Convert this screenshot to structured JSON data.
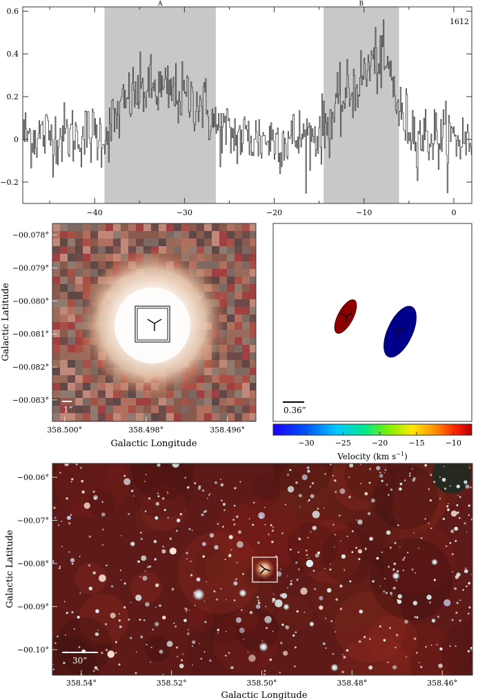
{
  "chart_data": [
    {
      "type": "line",
      "step": true,
      "id": "spectrum",
      "title": "",
      "xlabel": "",
      "ylabel": "",
      "xlim": [
        -48,
        2
      ],
      "ylim": [
        -0.3,
        0.62
      ],
      "corner_label": "1612",
      "x_ticks": [
        -40,
        -30,
        -20,
        -10,
        0
      ],
      "x_tick_labels": [
        "−40",
        "−30",
        "−20",
        "−10",
        "0"
      ],
      "y_ticks": [
        -0.2,
        0,
        0.2,
        0.4,
        0.6
      ],
      "y_tick_labels": [
        "−0.2",
        "0",
        "0.2",
        "0.4",
        "0.6"
      ],
      "shaded_regions": [
        {
          "label": "A",
          "x_start": -38.9,
          "x_end": -26.5
        },
        {
          "label": "B",
          "x_start": -14.5,
          "x_end": -6.1
        }
      ],
      "envelope": {
        "x": [
          -48,
          -38.9,
          -36,
          -34,
          -31,
          -28,
          -26.5,
          -24,
          -20,
          -16,
          -14.5,
          -12,
          -10,
          -9,
          -8,
          -7,
          -6.1,
          -4,
          0,
          2
        ],
        "y": [
          0.02,
          0.02,
          0.2,
          0.24,
          0.21,
          0.17,
          0.05,
          0.01,
          0.0,
          0.01,
          0.05,
          0.2,
          0.3,
          0.37,
          0.36,
          0.3,
          0.12,
          0.02,
          0.0,
          0.0
        ]
      },
      "noise_sigma": 0.075,
      "series": [
        {
          "color": "#4a4a4a"
        }
      ]
    },
    {
      "type": "image",
      "id": "zoom_image",
      "xlabel": "Galactic Longitude",
      "ylabel": "Galactic Latitude",
      "xlim": [
        358.5003,
        358.4953
      ],
      "ylim": [
        -0.08365,
        -0.07765
      ],
      "x_ticks": [
        358.5,
        358.498,
        358.496
      ],
      "x_tick_labels": [
        "358.500°",
        "358.498°",
        "358.496°"
      ],
      "y_ticks": [
        -0.078,
        -0.079,
        -0.08,
        -0.081,
        -0.082,
        -0.083
      ],
      "y_tick_labels": [
        "−00.078°",
        "−00.079°",
        "−00.080°",
        "−00.081°",
        "−00.082°",
        "−00.083°"
      ],
      "scale_bar_label": "1”"
    },
    {
      "type": "scatter",
      "id": "maser_positions",
      "scale_bar_label": "0.36”",
      "colorbar": {
        "label": "Velocity (km s",
        "label_exponent": "−1",
        "label_close": ")",
        "range": [
          -34.5,
          -7.5
        ],
        "ticks": [
          -30,
          -25,
          -20,
          -15,
          -10
        ],
        "tick_labels": [
          "−30",
          "−25",
          "−20",
          "−15",
          "−10"
        ]
      },
      "spots": [
        {
          "velocity": -9.0,
          "color": "#8b0000"
        },
        {
          "velocity": -32.0,
          "color": "#00008b"
        }
      ]
    },
    {
      "type": "image",
      "id": "wide_image",
      "xlabel": "Galactic Longitude",
      "ylabel": "Galactic Latitude",
      "xlim": [
        358.5464,
        358.4533
      ],
      "ylim": [
        -0.1059,
        -0.0568
      ],
      "x_ticks": [
        358.54,
        358.52,
        358.5,
        358.48,
        358.46
      ],
      "x_tick_labels": [
        "358.54°",
        "358.52°",
        "358.50°",
        "358.48°",
        "358.46°"
      ],
      "y_ticks": [
        -0.06,
        -0.07,
        -0.08,
        -0.09,
        -0.1
      ],
      "y_tick_labels": [
        "−00.06°",
        "−00.07°",
        "−00.08°",
        "−00.09°",
        "−00.10°"
      ],
      "scale_bar_label": "30”"
    }
  ]
}
